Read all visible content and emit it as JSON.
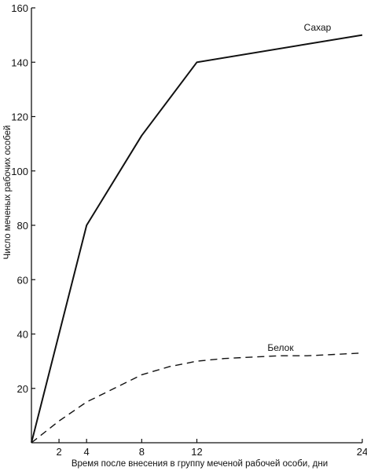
{
  "chart_data": {
    "type": "line",
    "title": "",
    "xlabel": "Время после внесения в группу меченой рабочей особи, дни",
    "ylabel": "Число меченых рабочих особей",
    "xlim": [
      0,
      24
    ],
    "ylim": [
      0,
      160
    ],
    "x_ticks": [
      2,
      4,
      8,
      12,
      24
    ],
    "y_ticks": [
      20,
      40,
      60,
      80,
      100,
      120,
      140,
      160
    ],
    "grid": false,
    "legend": "none",
    "series": [
      {
        "name": "Сахар",
        "style": "solid",
        "x": [
          0,
          4,
          8,
          12,
          24
        ],
        "y": [
          0,
          80,
          113,
          140,
          150
        ]
      },
      {
        "name": "Белок",
        "style": "dashed",
        "x": [
          0,
          2,
          4,
          6,
          8,
          10,
          12,
          14,
          16,
          18,
          20,
          22,
          24
        ],
        "y": [
          0,
          8,
          15,
          20,
          25,
          28,
          30,
          31,
          31.5,
          32,
          32,
          32.5,
          33
        ]
      }
    ]
  }
}
